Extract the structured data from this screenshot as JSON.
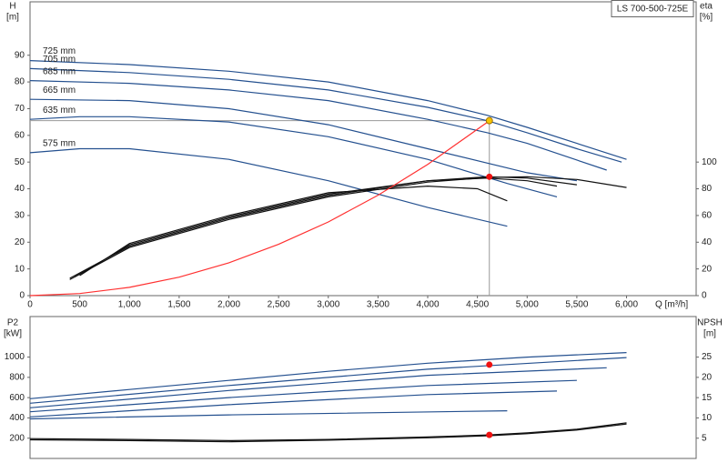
{
  "chart_data": [
    {
      "type": "line",
      "title": "LS 700-500-725E",
      "ylabel": "H",
      "ylabel_unit": "[m]",
      "y2label": "eta",
      "y2label_unit": "[%]",
      "xlabel": "Q [m³/h]",
      "xlim": [
        0,
        6700
      ],
      "ylim": [
        0,
        110
      ],
      "y2lim": [
        0,
        220
      ],
      "xticks": [
        0,
        500,
        {
          "value": 1000,
          "label": "1,000"
        },
        {
          "value": 1500,
          "label": "1,500"
        },
        {
          "value": 2000,
          "label": "2,000"
        },
        {
          "value": 2500,
          "label": "2,500"
        },
        {
          "value": 3000,
          "label": "3,000"
        },
        {
          "value": 3500,
          "label": "3,500"
        },
        {
          "value": 4000,
          "label": "4,000"
        },
        {
          "value": 4500,
          "label": "4,500"
        },
        {
          "value": 5000,
          "label": "5,000"
        },
        {
          "value": 5500,
          "label": "5,500"
        },
        {
          "value": 6000,
          "label": "6,000"
        }
      ],
      "yticks": [
        0,
        10,
        20,
        30,
        40,
        50,
        60,
        70,
        80,
        90
      ],
      "y2ticks": [
        0,
        20,
        40,
        60,
        80,
        100
      ],
      "series": [
        {
          "name": "725 mm",
          "color": "#24508f",
          "x": [
            0,
            1000,
            2000,
            3000,
            4000,
            4600,
            5000,
            5500,
            6000
          ],
          "values": [
            88,
            86.5,
            84,
            80,
            73,
            67.5,
            63,
            57,
            51
          ]
        },
        {
          "name": "705 mm",
          "color": "#24508f",
          "x": [
            0,
            1000,
            2000,
            3000,
            4000,
            4600,
            5000,
            5500,
            5950
          ],
          "values": [
            85,
            83.5,
            81,
            77,
            70.5,
            65.5,
            61,
            55,
            50
          ]
        },
        {
          "name": "685 mm",
          "color": "#24508f",
          "x": [
            0,
            1000,
            2000,
            3000,
            4000,
            4600,
            5000,
            5800
          ],
          "values": [
            80.5,
            79.5,
            77,
            73,
            66,
            61,
            57,
            47
          ]
        },
        {
          "name": "665 mm",
          "color": "#24508f",
          "x": [
            0,
            1000,
            2000,
            3000,
            4000,
            5000,
            5500
          ],
          "values": [
            73.5,
            73,
            70,
            64,
            55,
            46,
            43
          ]
        },
        {
          "name": "635 mm",
          "color": "#24508f",
          "x": [
            0,
            500,
            1000,
            2000,
            3000,
            4000,
            4800,
            5300
          ],
          "values": [
            66,
            67,
            67,
            65,
            59.5,
            51,
            42,
            37
          ]
        },
        {
          "name": "575 mm",
          "color": "#24508f",
          "x": [
            0,
            500,
            1000,
            2000,
            3000,
            4000,
            4800
          ],
          "values": [
            53.5,
            55,
            55,
            51,
            43,
            33,
            26
          ]
        },
        {
          "color": "#111111",
          "axis": "y2",
          "x": [
            400,
            1000,
            2000,
            3000,
            4000,
            4600,
            5000,
            5500,
            6000
          ],
          "values": [
            12,
            36,
            57,
            74,
            85,
            88.5,
            89,
            87,
            81
          ]
        },
        {
          "color": "#111111",
          "axis": "y2",
          "x": [
            400,
            1000,
            2000,
            3000,
            4000,
            4600,
            5000,
            5500
          ],
          "values": [
            13,
            37,
            58,
            75,
            86,
            89,
            88,
            83
          ]
        },
        {
          "color": "#111111",
          "axis": "y2",
          "x": [
            450,
            1000,
            2000,
            3000,
            4000,
            4600,
            5000,
            5300
          ],
          "values": [
            14,
            38,
            59,
            76,
            86,
            88,
            86,
            82
          ]
        },
        {
          "color": "#111111",
          "axis": "y2",
          "x": [
            500,
            1000,
            2000,
            3000,
            4000,
            4500,
            4800
          ],
          "values": [
            15,
            39,
            60,
            77,
            82,
            80,
            71
          ]
        },
        {
          "color": "#ff3030",
          "x": [
            0,
            500,
            1000,
            1500,
            2000,
            2500,
            3000,
            3500,
            4000,
            4620
          ],
          "values": [
            0,
            0.8,
            3.1,
            6.9,
            12.3,
            19.2,
            27.6,
            37.6,
            49.1,
            65.5
          ]
        }
      ],
      "points": [
        {
          "x": 4620,
          "y": 65.5,
          "color": "#f5c400",
          "guides": true
        },
        {
          "x": 4620,
          "y": 89,
          "axis": "y2",
          "color": "#ee1111"
        }
      ]
    },
    {
      "type": "line",
      "ylabel": "P2",
      "ylabel_unit": "[kW]",
      "y2label": "NPSH",
      "y2label_unit": "[m]",
      "xlim": [
        0,
        6700
      ],
      "ylim": [
        0,
        1400
      ],
      "y2lim": [
        0,
        35
      ],
      "yticks": [
        200,
        400,
        600,
        800,
        1000
      ],
      "y2ticks": [
        5,
        10,
        15,
        20,
        25
      ],
      "series": [
        {
          "color": "#24508f",
          "x": [
            0,
            1000,
            2000,
            3000,
            4000,
            5000,
            6000
          ],
          "values": [
            590,
            680,
            770,
            860,
            940,
            1000,
            1045
          ]
        },
        {
          "color": "#24508f",
          "x": [
            0,
            2000,
            4000,
            6000
          ],
          "values": [
            545,
            720,
            880,
            995
          ]
        },
        {
          "color": "#24508f",
          "x": [
            0,
            2000,
            4000,
            5800
          ],
          "values": [
            500,
            670,
            820,
            895
          ]
        },
        {
          "color": "#24508f",
          "x": [
            0,
            2000,
            4000,
            5500
          ],
          "values": [
            460,
            600,
            720,
            770
          ]
        },
        {
          "color": "#24508f",
          "x": [
            0,
            2000,
            4000,
            5300
          ],
          "values": [
            410,
            530,
            630,
            665
          ]
        },
        {
          "color": "#24508f",
          "x": [
            0,
            2000,
            4800
          ],
          "values": [
            390,
            430,
            470
          ]
        },
        {
          "color": "#111111",
          "axis": "y2",
          "x": [
            0,
            1000,
            2000,
            3000,
            4000,
            4620,
            5000,
            5500,
            6000
          ],
          "values": [
            4.9,
            4.7,
            4.4,
            4.7,
            5.3,
            5.8,
            6.3,
            7.2,
            8.8
          ]
        },
        {
          "color": "#111111",
          "axis": "y2",
          "x": [
            0,
            1000,
            2000,
            3000,
            4000,
            4620,
            5000,
            5500,
            6000
          ],
          "values": [
            4.6,
            4.4,
            4.1,
            4.5,
            5.1,
            5.6,
            6.1,
            7.0,
            8.5
          ]
        }
      ],
      "points": [
        {
          "x": 4620,
          "y": 925,
          "color": "#ee1111"
        },
        {
          "x": 4620,
          "y": 5.8,
          "axis": "y2",
          "color": "#ee1111"
        }
      ]
    }
  ]
}
